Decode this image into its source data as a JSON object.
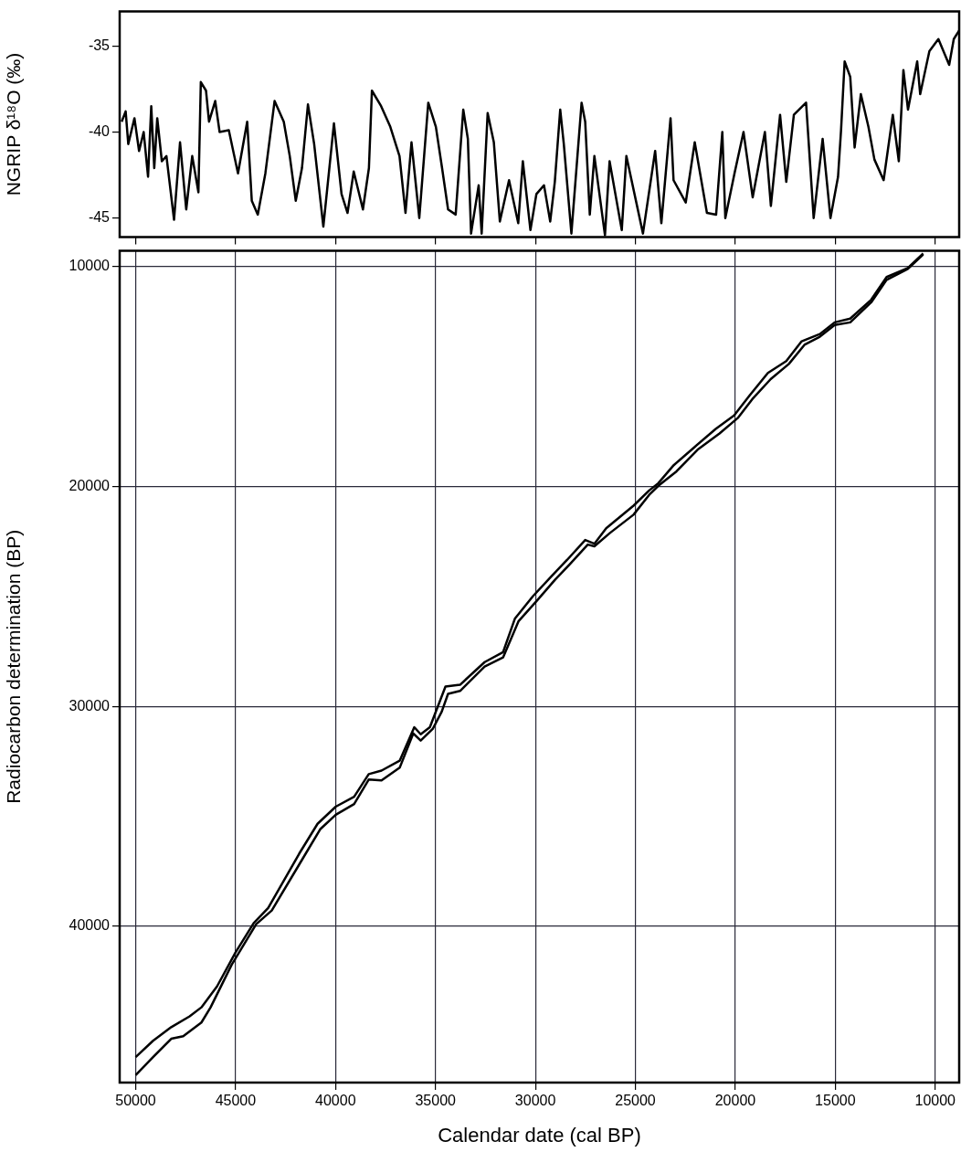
{
  "chart_data": [
    {
      "type": "line",
      "ylabel": "NGRIP δ¹⁸O (‰)",
      "xlim": [
        50800,
        8800
      ],
      "xticks": [
        {
          "value": 50000,
          "label": null
        },
        {
          "value": 45000,
          "label": null
        },
        {
          "value": 40000,
          "label": null
        },
        {
          "value": 35000,
          "label": null
        },
        {
          "value": 30000,
          "label": null
        },
        {
          "value": 25000,
          "label": null
        },
        {
          "value": 20000,
          "label": null
        },
        {
          "value": 15000,
          "label": null
        },
        {
          "value": 10000,
          "label": null
        }
      ],
      "ylim": [
        -46.1,
        -33
      ],
      "yticks": [
        -45,
        -40,
        -35
      ],
      "tick_labels": "y",
      "grid": false,
      "legend": false,
      "series": [
        {
          "color": "#000000",
          "x": [
            50700,
            50500,
            50370,
            50060,
            49830,
            49600,
            49380,
            49220,
            49070,
            48920,
            48690,
            48460,
            48080,
            47780,
            47470,
            47170,
            46860,
            46740,
            46480,
            46330,
            46020,
            45800,
            45340,
            44880,
            44420,
            44190,
            43890,
            43510,
            43050,
            42590,
            42290,
            41990,
            41680,
            41380,
            41070,
            40610,
            40080,
            39700,
            39400,
            39090,
            38630,
            38330,
            38180,
            37720,
            37260,
            36800,
            36500,
            36200,
            35810,
            35360,
            34980,
            34670,
            34370,
            33990,
            33610,
            33380,
            33220,
            32840,
            32690,
            32390,
            32080,
            31780,
            31320,
            30860,
            30630,
            30250,
            29950,
            29570,
            29260,
            29030,
            28760,
            28580,
            28200,
            27690,
            27510,
            27280,
            27050,
            26520,
            26290,
            25680,
            25450,
            24620,
            24010,
            23700,
            23240,
            23090,
            22480,
            22030,
            21420,
            20960,
            20650,
            20500,
            20040,
            19590,
            19130,
            18520,
            18220,
            17760,
            17450,
            17070,
            16460,
            16080,
            15630,
            15240,
            14860,
            14710,
            14530,
            14250,
            14030,
            13720,
            13340,
            13040,
            12580,
            12120,
            11820,
            11590,
            11360,
            10900,
            10750,
            10290,
            9840,
            9300,
            9070,
            8800
          ],
          "values": [
            -39.4,
            -38.8,
            -40.7,
            -39.2,
            -41.1,
            -40.0,
            -42.6,
            -38.5,
            -42.1,
            -39.2,
            -41.7,
            -41.4,
            -45.1,
            -40.6,
            -44.5,
            -41.4,
            -43.5,
            -37.1,
            -37.6,
            -39.4,
            -38.2,
            -40.0,
            -39.9,
            -42.4,
            -39.4,
            -44.0,
            -44.8,
            -42.4,
            -38.2,
            -39.4,
            -41.4,
            -44.0,
            -42.1,
            -38.4,
            -40.7,
            -45.5,
            -39.5,
            -43.6,
            -44.7,
            -42.3,
            -44.5,
            -42.1,
            -37.6,
            -38.5,
            -39.7,
            -41.4,
            -44.7,
            -40.6,
            -45.0,
            -38.3,
            -39.7,
            -42.1,
            -44.5,
            -44.8,
            -38.7,
            -40.4,
            -45.9,
            -43.1,
            -45.9,
            -38.9,
            -40.6,
            -45.2,
            -42.8,
            -45.3,
            -41.7,
            -45.7,
            -43.6,
            -43.1,
            -45.2,
            -42.9,
            -38.7,
            -40.7,
            -45.9,
            -38.3,
            -39.4,
            -44.8,
            -41.4,
            -46.0,
            -41.7,
            -45.7,
            -41.4,
            -45.9,
            -41.1,
            -45.3,
            -39.2,
            -42.8,
            -44.1,
            -40.6,
            -44.7,
            -44.8,
            -40.0,
            -45.0,
            -42.4,
            -40.0,
            -43.8,
            -40.0,
            -44.3,
            -39.0,
            -42.9,
            -39.0,
            -38.3,
            -45.0,
            -40.4,
            -45.0,
            -42.6,
            -39.9,
            -35.9,
            -36.8,
            -40.9,
            -37.8,
            -39.7,
            -41.6,
            -42.8,
            -39.0,
            -41.7,
            -36.4,
            -38.7,
            -35.9,
            -37.8,
            -35.3,
            -34.6,
            -36.1,
            -34.6,
            -34.1
          ]
        }
      ]
    },
    {
      "type": "line",
      "xlabel": "Calendar date (cal BP)",
      "ylabel": "Radiocarbon determination (BP)",
      "xlim": [
        50800,
        8800
      ],
      "xticks": [
        50000,
        45000,
        40000,
        35000,
        30000,
        25000,
        20000,
        15000,
        10000
      ],
      "ylim": [
        47100,
        9300
      ],
      "yticks": [
        10000,
        20000,
        30000,
        40000
      ],
      "grid": true,
      "legend": false,
      "series": [
        {
          "color": "#000000",
          "x": [
            50000,
            49130,
            48220,
            47300,
            46710,
            45930,
            45020,
            44100,
            43370,
            41820,
            40900,
            39990,
            39070,
            38340,
            37700,
            36790,
            36060,
            35740,
            35280,
            34500,
            33770,
            32540,
            31620,
            31030,
            30120,
            29200,
            28420,
            27510,
            27050,
            26460,
            25090,
            24310,
            23850,
            23080,
            22030,
            20980,
            20060,
            19280,
            18370,
            17450,
            16680,
            15770,
            15030,
            14250,
            13200,
            12430,
            11370,
            10600
          ],
          "values": [
            45940,
            45200,
            44580,
            44090,
            43680,
            42730,
            41210,
            39860,
            39160,
            36700,
            35340,
            34560,
            34110,
            33080,
            32920,
            32470,
            30950,
            31270,
            30950,
            29100,
            29020,
            27990,
            27540,
            26020,
            24990,
            24090,
            23350,
            22440,
            22610,
            21910,
            20880,
            20190,
            19860,
            19040,
            18210,
            17390,
            16780,
            15870,
            14850,
            14310,
            13410,
            13080,
            12550,
            12380,
            11520,
            10490,
            10080,
            9420
          ]
        },
        {
          "color": "#000000",
          "x": [
            50000,
            49130,
            48220,
            47620,
            46710,
            46250,
            45200,
            43970,
            43190,
            41680,
            40770,
            39990,
            39070,
            38340,
            37700,
            36790,
            36110,
            35740,
            35140,
            34690,
            34370,
            33770,
            32540,
            31620,
            30850,
            29930,
            29020,
            28290,
            27380,
            27050,
            26270,
            25090,
            24310,
            23850,
            22940,
            21890,
            20790,
            19880,
            19150,
            18230,
            17320,
            16540,
            15770,
            15030,
            14250,
            13200,
            12430,
            11370,
            10600
          ],
          "values": [
            46760,
            45940,
            45110,
            44990,
            44370,
            43680,
            41750,
            39900,
            39280,
            36980,
            35590,
            34930,
            34440,
            33330,
            33370,
            32790,
            31230,
            31560,
            31030,
            30250,
            29430,
            29300,
            28190,
            27780,
            26140,
            25200,
            24250,
            23550,
            22650,
            22730,
            22120,
            21290,
            20390,
            19980,
            19320,
            18340,
            17600,
            16900,
            16040,
            15130,
            14440,
            13570,
            13200,
            12670,
            12550,
            11640,
            10620,
            10120,
            9470
          ]
        }
      ]
    }
  ]
}
